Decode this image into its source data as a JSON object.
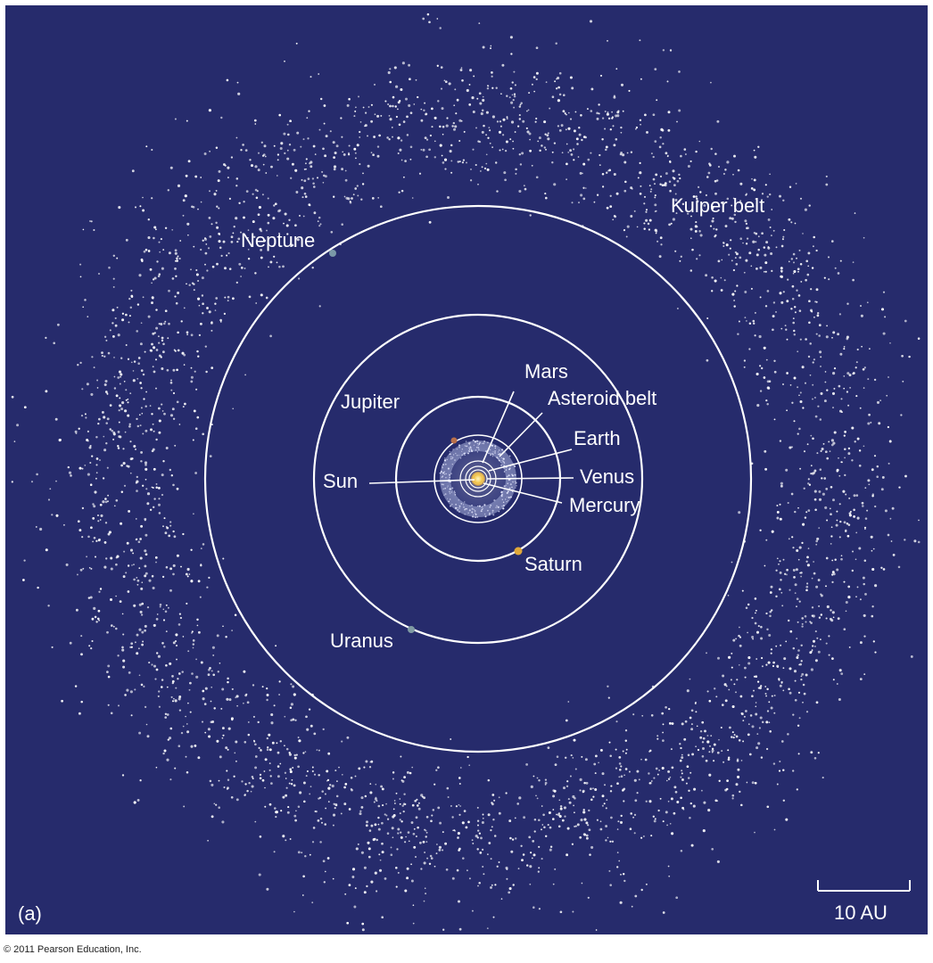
{
  "figure": {
    "panel_label": "(a)",
    "copyright": "© 2011 Pearson Education, Inc.",
    "scale_bar_label": "10 AU",
    "background_color": "#262b6c",
    "orbit_color": "#ffffff"
  },
  "labels": {
    "kuiper_belt": "Kuiper belt",
    "neptune": "Neptune",
    "uranus": "Uranus",
    "saturn": "Saturn",
    "jupiter": "Jupiter",
    "mars": "Mars",
    "asteroid_belt": "Asteroid belt",
    "earth": "Earth",
    "venus": "Venus",
    "mercury": "Mercury",
    "sun": "Sun"
  },
  "planet_colors": {
    "neptune": "#7a98a8",
    "uranus": "#7f9aa3",
    "saturn": "#e0a83a",
    "jupiter": "#b9704b",
    "sun": "#f2c44a"
  }
}
